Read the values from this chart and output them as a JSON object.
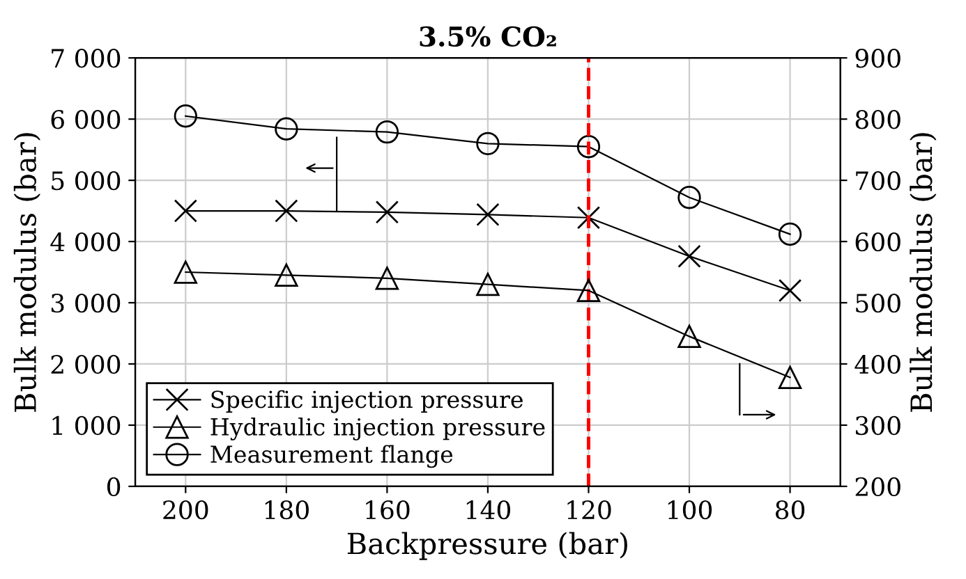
{
  "chart_data": {
    "type": "line",
    "title": "3.5% CO₂",
    "xlabel": "Backpressure (bar)",
    "ylabel": "Bulk modulus (bar)",
    "y2label": "Bulk modulus (bar)",
    "x": [
      200,
      180,
      160,
      140,
      120,
      100,
      80
    ],
    "series": [
      {
        "name": "Specific injection pressure",
        "color": "#000000",
        "marker": "cross",
        "values": [
          4500,
          4500,
          4480,
          4440,
          4390,
          3760,
          3200
        ]
      },
      {
        "name": "Hydraulic injection pressure",
        "color": "#000000",
        "marker": "triangle",
        "axis": "y2",
        "values": [
          550,
          545,
          540,
          530,
          520,
          445,
          378
        ]
      },
      {
        "name": "Measurement flange",
        "color": "#000000",
        "marker": "circle",
        "values": [
          6050,
          5840,
          5790,
          5600,
          5550,
          4720,
          4120
        ]
      }
    ],
    "xlim": [
      210,
      70
    ],
    "xticks": [
      200,
      180,
      160,
      140,
      120,
      100,
      80
    ],
    "ylim": [
      0,
      7000
    ],
    "yticks": [
      0,
      {
        "value": 1000,
        "label": "1 000"
      },
      {
        "value": 2000,
        "label": "2 000"
      },
      {
        "value": 3000,
        "label": "3 000"
      },
      {
        "value": 4000,
        "label": "4 000"
      },
      {
        "value": 5000,
        "label": "5 000"
      },
      {
        "value": 6000,
        "label": "6 000"
      },
      {
        "value": 7000,
        "label": "7 000"
      }
    ],
    "y2lim": [
      200,
      900
    ],
    "y2ticks": [
      200,
      300,
      400,
      500,
      600,
      700,
      800,
      900
    ],
    "ref_lines": [
      {
        "axis": "x",
        "value": 120,
        "color": "#ff0000",
        "line_style": "dashed"
      }
    ],
    "grid": true,
    "legend": "bottom left"
  }
}
